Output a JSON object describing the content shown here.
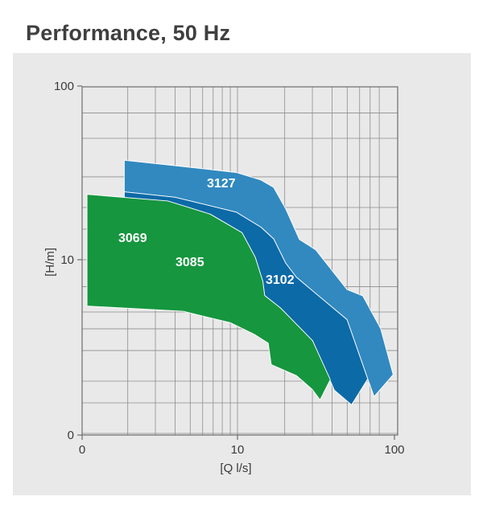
{
  "chart_data": {
    "type": "area",
    "title": "Performance, 50 Hz",
    "xlabel": "[Q l/s]",
    "ylabel": "[H/m]",
    "x_scale": "log",
    "y_scale": "log",
    "xlim": [
      0,
      100
    ],
    "ylim": [
      0,
      100
    ],
    "x_ticks": [
      {
        "value": 0,
        "label": "0"
      },
      {
        "value": 10,
        "label": "10"
      },
      {
        "value": 100,
        "label": "100"
      }
    ],
    "y_ticks": [
      {
        "value": 0,
        "label": "0"
      },
      {
        "value": 10,
        "label": "10"
      },
      {
        "value": 100,
        "label": "100"
      }
    ],
    "grid": true,
    "series": [
      {
        "name": "3127",
        "color": "#3189bf",
        "upper": [
          [
            1.9,
            37.4
          ],
          [
            4.0,
            34.8
          ],
          [
            9.8,
            31.8
          ],
          [
            14.1,
            28.8
          ],
          [
            17.0,
            26.1
          ],
          [
            20.3,
            19.6
          ],
          [
            24.8,
            13.1
          ],
          [
            31.5,
            11.4
          ],
          [
            49.9,
            6.73
          ],
          [
            62.9,
            6.19
          ],
          [
            81.6,
            4.02
          ],
          [
            98.1,
            2.18
          ]
        ],
        "lower": [
          [
            1.9,
            24.6
          ],
          [
            4.0,
            22.9
          ],
          [
            9.8,
            18.8
          ],
          [
            14.1,
            15.4
          ],
          [
            17.0,
            13.2
          ],
          [
            20.3,
            9.54
          ],
          [
            23.7,
            7.94
          ],
          [
            30.1,
            6.62
          ],
          [
            49.9,
            4.52
          ],
          [
            67.6,
            2.06
          ],
          [
            74.2,
            1.63
          ]
        ]
      },
      {
        "name": "3102",
        "color": "#0c6aa7",
        "upper": [
          [
            1.9,
            24.6
          ],
          [
            4.0,
            22.9
          ],
          [
            9.8,
            18.8
          ],
          [
            14.1,
            15.4
          ],
          [
            17.0,
            13.2
          ],
          [
            20.3,
            9.54
          ],
          [
            23.7,
            7.94
          ],
          [
            30.1,
            6.62
          ],
          [
            49.9,
            4.52
          ],
          [
            67.6,
            2.06
          ]
        ],
        "lower": [
          [
            1.9,
            21.5
          ],
          [
            3.8,
            20.4
          ],
          [
            6.7,
            18.3
          ],
          [
            10.7,
            14.3
          ],
          [
            13.0,
            10.3
          ],
          [
            14.5,
            7.51
          ],
          [
            14.9,
            6.22
          ],
          [
            18.9,
            5.25
          ],
          [
            30.1,
            3.42
          ],
          [
            41.5,
            1.77
          ],
          [
            53.3,
            1.46
          ]
        ]
      },
      {
        "name": "3069",
        "color": "#16963f",
        "upper": [
          [
            1.1,
            23.8
          ],
          [
            3.6,
            21.8
          ],
          [
            6.7,
            18.3
          ],
          [
            10.7,
            14.3
          ],
          [
            13.0,
            10.3
          ],
          [
            14.5,
            7.51
          ],
          [
            14.9,
            6.22
          ],
          [
            18.9,
            5.25
          ],
          [
            30.1,
            3.42
          ],
          [
            39.0,
            2.04
          ]
        ],
        "lower": [
          [
            1.1,
            5.41
          ],
          [
            4.5,
            5.05
          ],
          [
            9.0,
            4.34
          ],
          [
            12.8,
            3.72
          ],
          [
            15.7,
            3.31
          ],
          [
            16.4,
            2.49
          ],
          [
            23.8,
            2.15
          ],
          [
            30.0,
            1.79
          ],
          [
            33.6,
            1.56
          ]
        ]
      }
    ],
    "annotations": [
      "3127",
      "3102",
      "3069",
      "3085"
    ]
  }
}
